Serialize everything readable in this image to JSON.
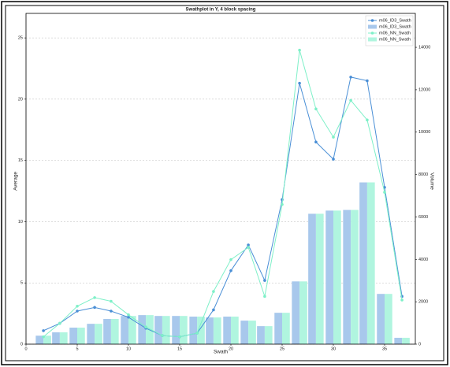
{
  "chart_data": {
    "type": "line",
    "title": "Swathplot in Y, 4 block spacing",
    "xlabel": "Swath",
    "ylabel": "Average",
    "y2label": "Volume",
    "x": [
      1.7,
      3.3,
      5,
      6.7,
      8.3,
      10,
      11.7,
      13.3,
      15,
      16.7,
      18.3,
      20,
      21.7,
      23.3,
      25,
      26.7,
      28.3,
      30,
      31.7,
      33.3,
      35,
      36.7
    ],
    "xlim": [
      0,
      38
    ],
    "xticks": [
      0,
      5,
      10,
      15,
      20,
      25,
      30,
      35
    ],
    "ylim": [
      0,
      27
    ],
    "yticks": [
      0,
      5,
      10,
      15,
      20,
      25
    ],
    "y2lim": [
      0,
      15600
    ],
    "y2ticks": [
      0,
      2000,
      4000,
      6000,
      8000,
      10000,
      12000,
      14000
    ],
    "grid": true,
    "legend": "upper right",
    "series": [
      {
        "name": "m06_ID3_Swath",
        "type": "line",
        "color": "#4a8fd6",
        "values": [
          1.1,
          1.7,
          2.7,
          3.0,
          2.7,
          2.2,
          1.3,
          0.7,
          0.6,
          0.9,
          2.8,
          6.0,
          8.1,
          5.2,
          11.8,
          21.3,
          16.5,
          15.1,
          21.8,
          21.5,
          12.8,
          3.9
        ]
      },
      {
        "name": "m06_ID3_Swath",
        "type": "bar",
        "axis": "y2",
        "color": "#a8c8ec",
        "values": [
          400,
          560,
          780,
          960,
          1190,
          1330,
          1370,
          1330,
          1330,
          1300,
          1260,
          1300,
          1110,
          850,
          1480,
          2960,
          6150,
          6300,
          6330,
          7630,
          2370,
          300
        ]
      },
      {
        "name": "m06_NN_Swath",
        "type": "line",
        "color": "#7ef0c8",
        "values": [
          0.6,
          1.7,
          3.1,
          3.8,
          3.5,
          2.4,
          1.4,
          0.7,
          0.6,
          0.9,
          4.3,
          6.9,
          7.9,
          3.9,
          11.4,
          24.0,
          19.2,
          16.9,
          19.9,
          18.3,
          12.4,
          3.6
        ]
      },
      {
        "name": "m06_NN_Swath",
        "type": "bar",
        "axis": "y2",
        "color": "#b0f5df",
        "values": [
          400,
          560,
          780,
          960,
          1190,
          1330,
          1370,
          1330,
          1330,
          1300,
          1260,
          1300,
          1110,
          850,
          1480,
          2960,
          6150,
          6300,
          6330,
          7630,
          2370,
          300
        ]
      }
    ]
  }
}
